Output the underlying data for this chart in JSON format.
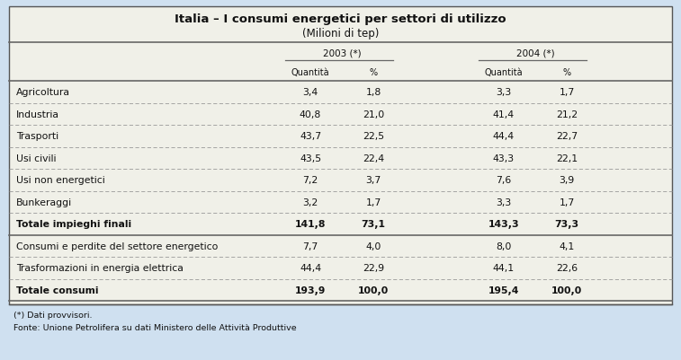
{
  "title": "Italia – I consumi energetici per settori di utilizzo",
  "subtitle": "(Milioni di tep)",
  "year_headers": [
    "2003 (*)",
    "2004 (*)"
  ],
  "col_headers": [
    "Quantità",
    "%",
    "Quantità",
    "%"
  ],
  "rows": [
    {
      "label": "Agricoltura",
      "vals": [
        "3,4",
        "1,8",
        "3,3",
        "1,7"
      ],
      "bold": false
    },
    {
      "label": "Industria",
      "vals": [
        "40,8",
        "21,0",
        "41,4",
        "21,2"
      ],
      "bold": false
    },
    {
      "label": "Trasporti",
      "vals": [
        "43,7",
        "22,5",
        "44,4",
        "22,7"
      ],
      "bold": false
    },
    {
      "label": "Usi civili",
      "vals": [
        "43,5",
        "22,4",
        "43,3",
        "22,1"
      ],
      "bold": false
    },
    {
      "label": "Usi non energetici",
      "vals": [
        "7,2",
        "3,7",
        "7,6",
        "3,9"
      ],
      "bold": false
    },
    {
      "label": "Bunkeraggi",
      "vals": [
        "3,2",
        "1,7",
        "3,3",
        "1,7"
      ],
      "bold": false
    },
    {
      "label": "Totale impieghi finali",
      "vals": [
        "141,8",
        "73,1",
        "143,3",
        "73,3"
      ],
      "bold": true
    },
    {
      "label": "Consumi e perdite del settore energetico",
      "vals": [
        "7,7",
        "4,0",
        "8,0",
        "4,1"
      ],
      "bold": false
    },
    {
      "label": "Trasformazioni in energia elettrica",
      "vals": [
        "44,4",
        "22,9",
        "44,1",
        "22,6"
      ],
      "bold": false
    },
    {
      "label": "Totale consumi",
      "vals": [
        "193,9",
        "100,0",
        "195,4",
        "100,0"
      ],
      "bold": true
    }
  ],
  "footnote1": "(*) Dati provvisori.",
  "footnote2": "Fonte: Unione Petrolifera su dati Ministero delle Attività Produttive",
  "bg_color": "#cfe0f0",
  "table_bg": "#f0f0e8",
  "border_color": "#555555",
  "line_color": "#666666",
  "dashed_color": "#999999"
}
